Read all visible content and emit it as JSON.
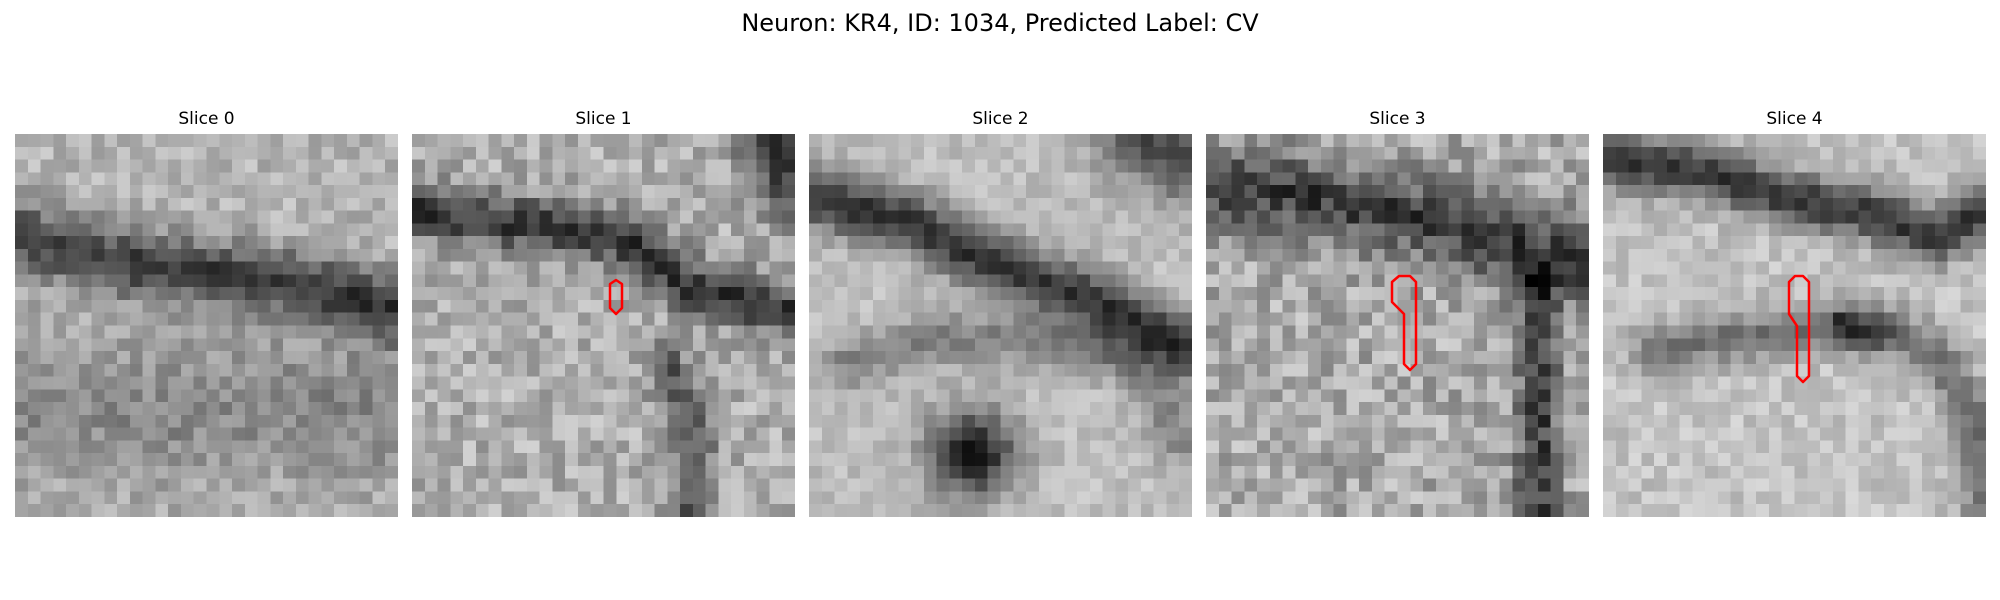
{
  "figure": {
    "title": "Neuron: KR4, ID: 1034, Predicted Label: CV"
  },
  "colors": {
    "contour": "#ff0000",
    "background": "#ffffff"
  },
  "slices": [
    {
      "title": "Slice 0",
      "has_contour": false
    },
    {
      "title": "Slice 1",
      "has_contour": true
    },
    {
      "title": "Slice 2",
      "has_contour": false
    },
    {
      "title": "Slice 3",
      "has_contour": true
    },
    {
      "title": "Slice 4",
      "has_contour": true
    }
  ]
}
